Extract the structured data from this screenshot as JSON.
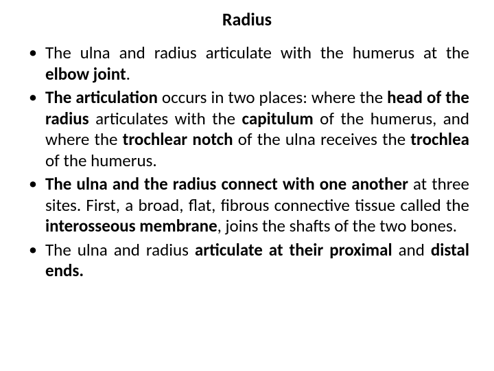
{
  "title": "Radius",
  "bullets": [
    {
      "segments": [
        {
          "t": "The ulna and radius articulate with the humerus at the ",
          "b": false
        },
        {
          "t": "elbow joint",
          "b": true
        },
        {
          "t": ".",
          "b": false
        }
      ]
    },
    {
      "segments": [
        {
          "t": "The articulation ",
          "b": true
        },
        {
          "t": "occurs in two places: where the ",
          "b": false
        },
        {
          "t": "head of the radius ",
          "b": true
        },
        {
          "t": "articulates with the ",
          "b": false
        },
        {
          "t": "capitulum ",
          "b": true
        },
        {
          "t": "of the humerus, and where the ",
          "b": false
        },
        {
          "t": "trochlear notch ",
          "b": true
        },
        {
          "t": "of the ulna receives the ",
          "b": false
        },
        {
          "t": "trochlea ",
          "b": true
        },
        {
          "t": "of the humerus.",
          "b": false
        }
      ]
    },
    {
      "segments": [
        {
          "t": "The ulna and the radius connect with one another ",
          "b": true
        },
        {
          "t": "at three sites. First, a broad, flat, fibrous connective tissue called the ",
          "b": false
        },
        {
          "t": "interosseous membrane",
          "b": true
        },
        {
          "t": ", joins the shafts of the two bones.",
          "b": false
        }
      ]
    },
    {
      "segments": [
        {
          "t": "The ulna and radius ",
          "b": false
        },
        {
          "t": "articulate at their proximal ",
          "b": true
        },
        {
          "t": "and ",
          "b": false
        },
        {
          "t": "distal ends.",
          "b": true
        }
      ]
    }
  ],
  "style": {
    "background": "#ffffff",
    "text_color": "#000000",
    "title_fontsize": 26,
    "body_fontsize": 25,
    "line_height": 1.22,
    "bullet_glyph": "•",
    "text_align": "justify",
    "font_family": "Calibri"
  }
}
